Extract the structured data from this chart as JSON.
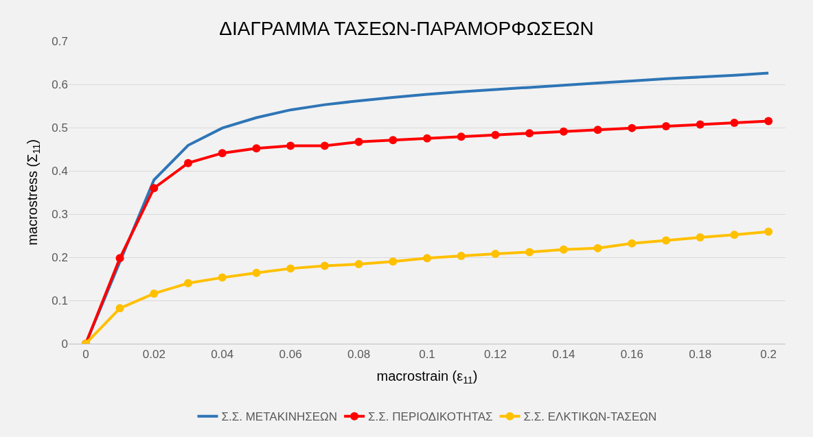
{
  "chart_data": {
    "type": "line",
    "title": "ΔΙΑΓΡΑΜΜΑ ΤΑΣΕΩΝ-ΠΑΡΑΜΟΡΦΩΣΕΩΝ",
    "xlabel": "macrostrain (ε$_{11}$)",
    "ylabel": "macrostress (Σ$_{11}$)",
    "x": [
      0,
      0.01,
      0.02,
      0.03,
      0.04,
      0.05,
      0.06,
      0.07,
      0.08,
      0.09,
      0.1,
      0.11,
      0.12,
      0.13,
      0.14,
      0.15,
      0.16,
      0.17,
      0.18,
      0.19,
      0.2
    ],
    "series": [
      {
        "name": "Σ.Σ. ΜΕΤΑΚΙΝΗΣΕΩΝ",
        "color": "#2e75b6",
        "marker": "none",
        "values": [
          0,
          null,
          0.379,
          0.459,
          0.499,
          0.523,
          0.541,
          0.553,
          0.562,
          0.57,
          0.577,
          0.583,
          0.588,
          0.593,
          0.598,
          0.603,
          0.608,
          0.613,
          0.617,
          0.621,
          0.626
        ]
      },
      {
        "name": "Σ.Σ. ΠΕΡΙΟΔΙΚΟΤΗΤΑΣ",
        "color": "#ff0000",
        "marker": "circle",
        "values": [
          0,
          0.198,
          0.36,
          0.418,
          0.441,
          0.452,
          0.458,
          0.458,
          0.467,
          0.471,
          0.475,
          0.479,
          0.483,
          0.487,
          0.491,
          0.495,
          0.499,
          0.503,
          0.507,
          0.511,
          0.515
        ]
      },
      {
        "name": "Σ.Σ. ΕΛΚΤΙΚΩΝ-ΤΑΣΕΩΝ",
        "color": "#ffc000",
        "marker": "circle",
        "values": [
          0,
          0.082,
          0.116,
          0.14,
          0.153,
          0.164,
          0.174,
          0.18,
          0.184,
          0.19,
          0.198,
          0.203,
          0.208,
          0.212,
          0.218,
          0.221,
          0.232,
          0.239,
          0.246,
          0.252,
          0.259
        ]
      }
    ],
    "xlim": [
      -0.005,
      0.205
    ],
    "xticks": [
      0,
      0.02,
      0.04,
      0.06,
      0.08,
      0.1,
      0.12,
      0.14,
      0.16,
      0.18,
      0.2
    ],
    "ylim": [
      0,
      0.7
    ],
    "yticks": [
      0,
      0.1,
      0.2,
      0.3,
      0.4,
      0.5,
      0.6,
      0.7
    ],
    "grid": "y",
    "legend": "bottom",
    "line_style": "solid"
  }
}
